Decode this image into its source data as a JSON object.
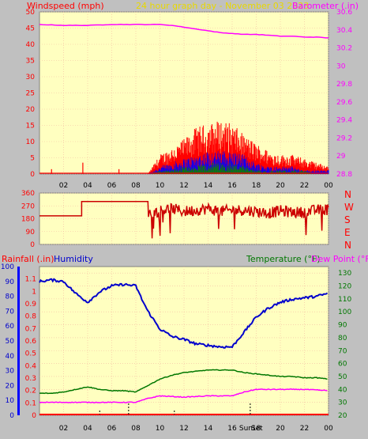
{
  "header": {
    "title": "24 hour graph day - November 03 2023",
    "wind_label": "Windspeed (mph)",
    "baro_label": "Barometer (.in)"
  },
  "direction_panel": {
    "compass_letters": [
      "N",
      "W",
      "S",
      "E",
      "N"
    ]
  },
  "lower_header": {
    "rain_label": "Rainfall (.in)",
    "humidity_label": "Humidity",
    "temp_label": "Temperature (°F)",
    "dew_label": "Dew Point (°F)"
  },
  "sun_markers": {
    "sunrise": "Sun",
    "sunset": "Set"
  },
  "colors": {
    "plot_bg": "#ffffc0",
    "frame_bg": "#c0c0c0",
    "grid": "#f4b9a0",
    "wind_axis": "#ff0000",
    "baro_axis": "#ff00ff",
    "title": "#e8d800",
    "humidity": "#0000cc",
    "temperature": "#007700",
    "dew_point": "#ff00ff",
    "rain": "#ff0000",
    "gust_max": "#ff0000",
    "gust_mid": "#0000ff",
    "wind_avg": "#008800",
    "direction": "#cc0000",
    "text_axis": "#000000"
  },
  "chart_data": [
    {
      "type": "line",
      "name": "wind-barometer",
      "x_ticks": [
        "02",
        "04",
        "06",
        "08",
        "10",
        "12",
        "14",
        "16",
        "18",
        "20",
        "22",
        "00"
      ],
      "x_hours": [
        2,
        4,
        6,
        8,
        10,
        12,
        14,
        16,
        18,
        20,
        22,
        24
      ],
      "ylim_left": [
        0,
        50
      ],
      "y_ticks_left": [
        "0",
        "5",
        "10",
        "15",
        "20",
        "25",
        "30",
        "35",
        "40",
        "45",
        "50"
      ],
      "ylim_right": [
        28.8,
        30.6
      ],
      "y_ticks_right": [
        "28.8",
        "29",
        "29.2",
        "29.4",
        "29.6",
        "29.8",
        "30",
        "30.2",
        "30.4",
        "30.6"
      ],
      "barometer": {
        "hours": [
          0,
          2,
          4,
          6,
          8,
          10,
          11,
          12,
          13,
          14,
          15,
          16,
          17,
          18,
          19,
          20,
          21,
          22,
          23,
          24
        ],
        "values": [
          30.46,
          30.45,
          30.45,
          30.46,
          30.46,
          30.46,
          30.45,
          30.43,
          30.41,
          30.39,
          30.37,
          30.36,
          30.35,
          30.35,
          30.34,
          30.33,
          30.33,
          30.32,
          30.32,
          30.31
        ]
      },
      "wind_profile": {
        "hours": [
          0,
          9,
          10,
          11,
          12,
          13,
          14,
          15,
          16,
          17,
          18,
          19,
          20,
          21,
          22,
          23,
          24
        ],
        "gust_peak": [
          0,
          0,
          5,
          7,
          9,
          12,
          13,
          14,
          13,
          10,
          8,
          6,
          5,
          5,
          4,
          3,
          2
        ],
        "gust_mid": [
          0,
          0,
          2,
          3,
          4,
          5,
          6,
          6,
          6,
          5,
          3,
          2,
          2,
          2,
          1,
          1,
          1
        ],
        "avg": [
          0,
          0,
          1,
          1,
          2,
          2,
          3,
          3,
          3,
          2,
          1,
          1,
          1,
          1,
          1,
          0,
          0
        ]
      },
      "early_spikes": [
        {
          "hour": 1.0,
          "mph": 1.5
        },
        {
          "hour": 3.6,
          "mph": 3.5
        },
        {
          "hour": 6.6,
          "mph": 1.5
        }
      ]
    },
    {
      "type": "line",
      "name": "wind-direction",
      "ylim": [
        0,
        360
      ],
      "y_ticks": [
        "0",
        "90",
        "180",
        "270",
        "360"
      ],
      "hours": [
        0,
        3.5,
        3.5,
        9.0,
        9.5,
        10,
        11,
        12,
        13,
        14,
        15,
        16,
        17,
        18,
        19,
        20,
        21,
        22,
        23,
        24
      ],
      "degrees": [
        200,
        200,
        300,
        300,
        220,
        240,
        250,
        230,
        240,
        250,
        230,
        240,
        240,
        230,
        220,
        235,
        225,
        225,
        240,
        245
      ]
    },
    {
      "type": "line",
      "name": "temp-humidity-rain",
      "ylim_humidity": [
        0,
        100
      ],
      "y_ticks_humidity": [
        "0",
        "10",
        "20",
        "30",
        "40",
        "50",
        "60",
        "70",
        "80",
        "90",
        "100"
      ],
      "ylim_rain": [
        0,
        1.2
      ],
      "y_ticks_rain": [
        "0",
        "0.1",
        "0.2",
        "0.3",
        "0.4",
        "0.5",
        "0.6",
        "0.7",
        "0.8",
        "0.9",
        "1",
        "1.1"
      ],
      "ylim_temp": [
        20,
        135
      ],
      "y_ticks_temp": [
        "20",
        "30",
        "40",
        "50",
        "60",
        "70",
        "80",
        "90",
        "100",
        "110",
        "120",
        "130"
      ],
      "humidity": {
        "hours": [
          0,
          1,
          2,
          3,
          4,
          5,
          6,
          7,
          8,
          8.5,
          9,
          9.5,
          10,
          11,
          12,
          13,
          14,
          15,
          16,
          17,
          18,
          19,
          20,
          21,
          22,
          23,
          24
        ],
        "values": [
          90,
          91,
          90,
          82,
          76,
          83,
          87,
          88,
          87,
          78,
          70,
          64,
          58,
          53,
          51,
          48,
          47,
          46,
          46,
          56,
          66,
          72,
          76,
          78,
          79,
          80,
          82
        ]
      },
      "temperature": {
        "hours": [
          0,
          1,
          2,
          3,
          4,
          5,
          6,
          7,
          8,
          9,
          10,
          11,
          12,
          13,
          14,
          15,
          16,
          17,
          18,
          19,
          20,
          21,
          22,
          23,
          24
        ],
        "values": [
          37,
          37,
          38,
          40,
          42,
          40,
          39,
          39,
          38,
          43,
          48,
          51,
          53,
          54,
          55,
          55,
          55,
          53,
          52,
          51,
          50,
          50,
          49,
          49,
          48
        ]
      },
      "dew_point": {
        "hours": [
          0,
          2,
          4,
          6,
          8,
          9,
          10,
          12,
          14,
          16,
          17,
          18,
          20,
          22,
          24
        ],
        "values": [
          30,
          30,
          30,
          30,
          30,
          33,
          35,
          34,
          35,
          35,
          38,
          40,
          40,
          40,
          39
        ]
      },
      "rain": {
        "hours": [
          0,
          24
        ],
        "inches": [
          0,
          0
        ]
      },
      "sunrise_hour": 7.4,
      "sunset_hour": 17.5
    }
  ]
}
